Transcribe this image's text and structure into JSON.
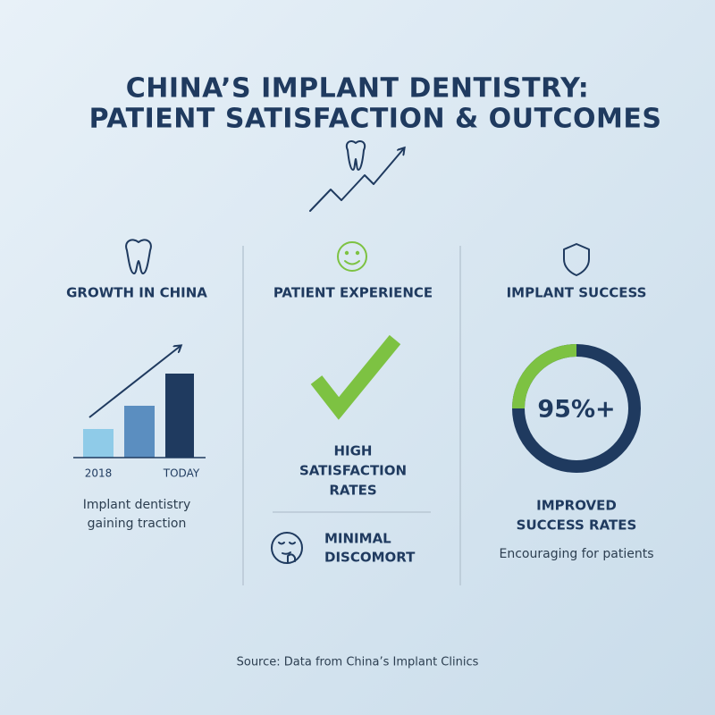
{
  "header": {
    "title": [
      "CHINA’S IMPLANT DENTISTRY:",
      "PATIENT SATISFACTION & OUTCOMES"
    ]
  },
  "columns": [
    {
      "heading": "GROWTH IN CHINA",
      "chart_labels": [
        "2018",
        "TODAY"
      ],
      "caption": [
        "Implant dentistry",
        "gaining traction"
      ]
    },
    {
      "heading": "PATIENT EXPERIENCE",
      "highlight": [
        "HIGH",
        "SATISFACTION",
        "RATES"
      ],
      "note": [
        "MINIMAL",
        "DISCOMORT"
      ]
    },
    {
      "heading": "IMPLANT SUCCESS",
      "stat": "95%+",
      "highlight": [
        "IMPROVED",
        "SUCCESS RATES"
      ],
      "caption": [
        "Encouraging for patients"
      ]
    }
  ],
  "footer": {
    "source": "Source: Data from China’s Implant Clinics"
  }
}
